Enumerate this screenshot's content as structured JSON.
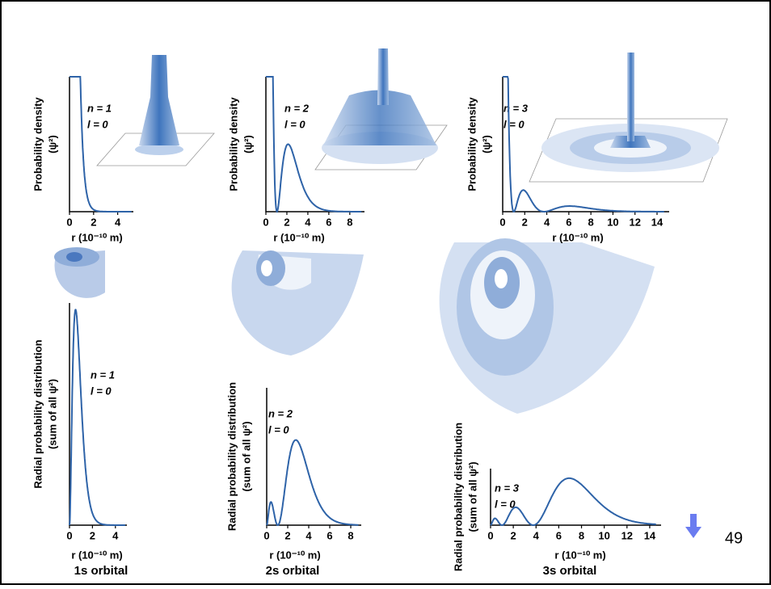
{
  "slide_number": "49",
  "orbital_names": [
    "1s orbital",
    "2s orbital",
    "3s orbital"
  ],
  "top_panels": [
    {
      "y_label": "Probability density",
      "y_unit": "(ψ²)",
      "x_label": "r (10⁻¹⁰ m)",
      "n_label": "n = 1",
      "l_label": "l = 0",
      "xlim": [
        0,
        5.3
      ],
      "xticks": [
        0,
        2,
        4
      ]
    },
    {
      "y_label": "Probability density",
      "y_unit": "(ψ²)",
      "x_label": "r (10⁻¹⁰ m)",
      "n_label": "n = 2",
      "l_label": "l = 0",
      "xlim": [
        0,
        9.4
      ],
      "xticks": [
        0,
        2,
        4,
        6,
        8
      ]
    },
    {
      "y_label": "Probability density",
      "y_unit": "(ψ²)",
      "x_label": "r (10⁻¹⁰ m)",
      "n_label": "n = 3",
      "l_label": "l = 0",
      "xlim": [
        0,
        15.1
      ],
      "xticks": [
        0,
        2,
        4,
        6,
        8,
        10,
        12,
        14
      ]
    }
  ],
  "bottom_panels": [
    {
      "y_label": "Radial probability distribution",
      "y_unit": "(sum of all ψ²)",
      "x_label": "r (10⁻¹⁰ m)",
      "n_label": "n = 1",
      "l_label": "l = 0",
      "xlim": [
        0,
        5.0
      ],
      "xticks": [
        0,
        2,
        4
      ]
    },
    {
      "y_label": "Radial probability distribution",
      "y_unit": "(sum of all ψ²)",
      "x_label": "r (10⁻¹⁰ m)",
      "n_label": "n = 2",
      "l_label": "l = 0",
      "xlim": [
        0,
        9.0
      ],
      "xticks": [
        0,
        2,
        4,
        6,
        8
      ]
    },
    {
      "y_label": "Radial probability distribution",
      "y_unit": "(sum of all ψ²)",
      "x_label": "r (10⁻¹⁰ m)",
      "n_label": "n = 3",
      "l_label": "l = 0",
      "xlim": [
        0,
        15.0
      ],
      "xticks": [
        0,
        2,
        4,
        6,
        8,
        10,
        12,
        14
      ]
    }
  ]
}
